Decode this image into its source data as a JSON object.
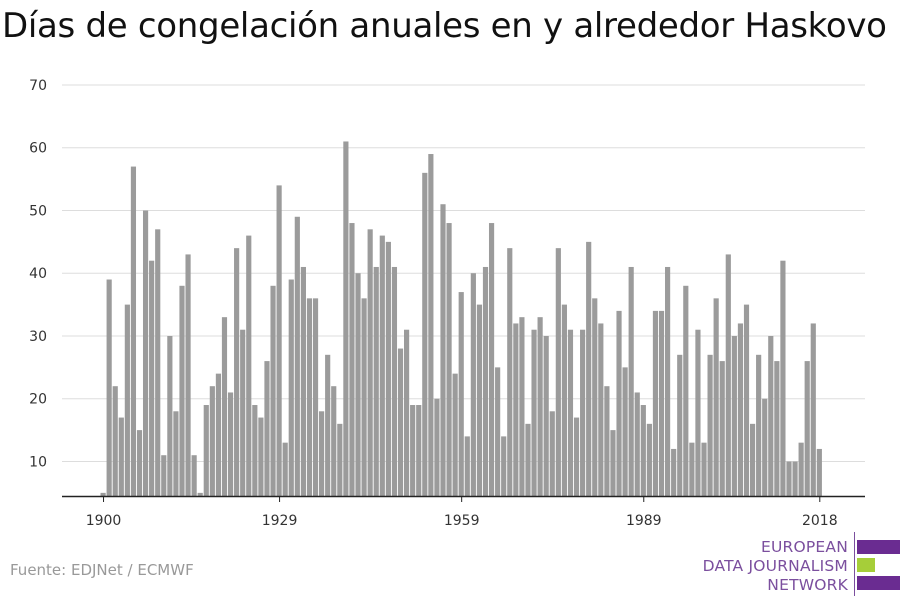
{
  "title": "Días de congelación anuales en y alrededor Haskovo",
  "source": "Fuente: EDJNet / ECMWF",
  "logo": {
    "lines": [
      "EUROPEAN",
      "DATA JOURNALISM",
      "NETWORK"
    ],
    "colors": {
      "text": "#7b4f9e",
      "purple": "#6a2c91",
      "green": "#a6ce39",
      "rule": "#7b4f9e"
    }
  },
  "colors": {
    "bar": "#9b9b9b",
    "grid": "#dddddd",
    "axis": "#222222",
    "text": "#333333"
  },
  "chart_data": {
    "type": "bar",
    "title": "Días de congelación anuales en y alrededor Haskovo",
    "xlabel": "",
    "ylabel": "",
    "x_start": 1900,
    "x_end": 2020,
    "xticks": [
      1900,
      1929,
      1959,
      1989,
      2018
    ],
    "yticks": [
      10,
      20,
      30,
      40,
      50,
      60,
      70
    ],
    "ylim": [
      4.5,
      70
    ],
    "grid": true,
    "values": [
      5,
      39,
      22,
      17,
      35,
      57,
      15,
      50,
      42,
      47,
      11,
      30,
      18,
      38,
      43,
      11,
      5,
      19,
      22,
      24,
      33,
      21,
      44,
      31,
      46,
      19,
      17,
      26,
      38,
      54,
      13,
      39,
      49,
      41,
      36,
      36,
      18,
      27,
      22,
      16,
      61,
      48,
      40,
      36,
      47,
      41,
      46,
      45,
      41,
      28,
      31,
      19,
      19,
      56,
      59,
      20,
      51,
      48,
      24,
      37,
      14,
      40,
      35,
      41,
      48,
      25,
      14,
      44,
      32,
      33,
      16,
      31,
      33,
      30,
      18,
      44,
      35,
      31,
      17,
      31,
      45,
      36,
      32,
      22,
      15,
      34,
      25,
      41,
      21,
      19,
      16,
      34,
      34,
      41,
      12,
      27,
      38,
      13,
      31,
      13,
      27,
      36,
      26,
      43,
      30,
      32,
      35,
      16,
      27,
      20,
      30,
      26,
      42,
      10,
      10,
      13,
      26,
      32,
      12
    ]
  }
}
